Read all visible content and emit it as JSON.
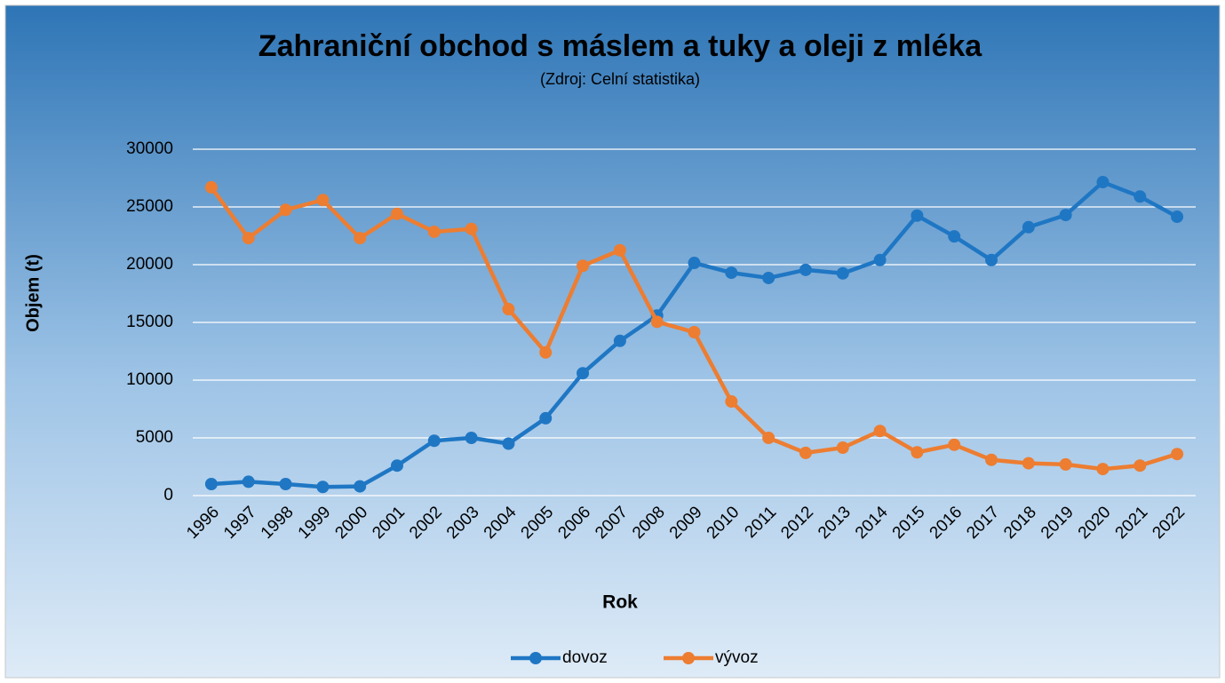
{
  "chart_data": {
    "type": "line",
    "title": "Zahraniční obchod s máslem a tuky a oleji z mléka",
    "subtitle": "(Zdroj: Celní statistika)",
    "x_label": "Rok",
    "y_label": "Objem (t)",
    "categories": [
      "1996",
      "1997",
      "1998",
      "1999",
      "2000",
      "2001",
      "2002",
      "2003",
      "2004",
      "2005",
      "2006",
      "2007",
      "2008",
      "2009",
      "2010",
      "2011",
      "2012",
      "2013",
      "2014",
      "2015",
      "2016",
      "2017",
      "2018",
      "2019",
      "2020",
      "2021",
      "2022"
    ],
    "series": [
      {
        "name": "dovoz",
        "color": "#1f77c4",
        "values": [
          1000,
          1200,
          1000,
          750,
          800,
          2600,
          4750,
          5000,
          4500,
          6700,
          10600,
          13400,
          15600,
          20150,
          19300,
          18850,
          19550,
          19250,
          20400,
          24250,
          22450,
          20400,
          23250,
          24300,
          27150,
          25900,
          24150
        ]
      },
      {
        "name": "vývoz",
        "color": "#ed7d31",
        "values": [
          26700,
          22300,
          24750,
          25600,
          22300,
          24400,
          22850,
          23100,
          16150,
          12400,
          19900,
          21250,
          15050,
          14150,
          8150,
          5000,
          3700,
          4150,
          5600,
          3750,
          4400,
          3100,
          2800,
          2700,
          2300,
          2600,
          3600
        ]
      }
    ],
    "ylim": [
      0,
      30000
    ],
    "yticks": [
      0,
      5000,
      10000,
      15000,
      20000,
      25000,
      30000
    ],
    "grid": true,
    "legend": "bottom"
  }
}
